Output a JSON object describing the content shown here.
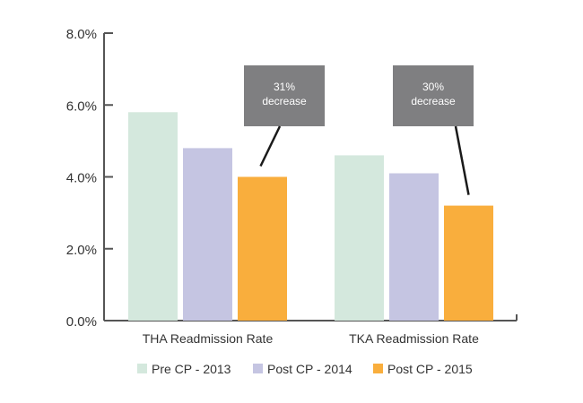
{
  "chart_data": {
    "type": "bar",
    "title": "",
    "xlabel": "",
    "ylabel": "",
    "ylim": [
      0,
      8
    ],
    "yticks": [
      0,
      2,
      4,
      6,
      8
    ],
    "ytick_labels": [
      "0.0%",
      "2.0%",
      "4.0%",
      "6.0%",
      "8.0%"
    ],
    "categories": [
      "THA Readmission Rate",
      "TKA Readmission Rate"
    ],
    "series": [
      {
        "name": "Pre CP - 2013",
        "color": "#d4e8dd",
        "values": [
          5.8,
          4.6
        ]
      },
      {
        "name": "Post CP - 2014",
        "color": "#c5c5e2",
        "values": [
          4.8,
          4.1
        ]
      },
      {
        "name": "Post CP - 2015",
        "color": "#f9ae3d",
        "values": [
          4.0,
          3.2
        ]
      }
    ],
    "annotations": [
      {
        "category": "THA Readmission Rate",
        "series": "Post CP - 2015",
        "line1": "31%",
        "line2": "decrease"
      },
      {
        "category": "TKA Readmission Rate",
        "series": "Post CP - 2015",
        "line1": "30%",
        "line2": "decrease"
      }
    ],
    "legend": "bottom",
    "grid": false,
    "callout_color": "#7f7f81",
    "axis_color": "#555555"
  }
}
